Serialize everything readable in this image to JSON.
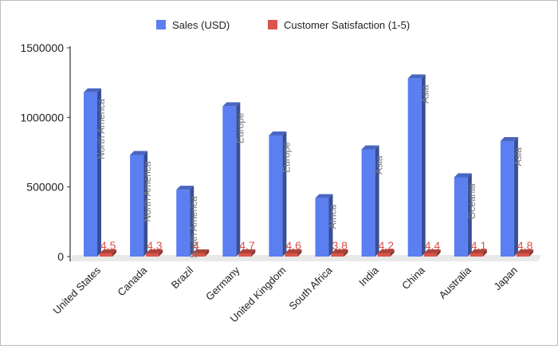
{
  "chart_data": {
    "type": "bar",
    "title": "",
    "xlabel": "",
    "ylabel": "",
    "ylim": [
      0,
      1500000
    ],
    "yticks": [
      0,
      500000,
      1000000,
      1500000
    ],
    "y_tick_labels": [
      "0",
      "500000",
      "1000000",
      "1500000"
    ],
    "grid": false,
    "three_d": true,
    "legend_position": "top",
    "categories": [
      "United States",
      "Canada",
      "Brazil",
      "Germany",
      "United Kingdom",
      "South Africa",
      "India",
      "China",
      "Australia",
      "Japan"
    ],
    "series": [
      {
        "name": "Sales (USD)",
        "color": "#5b7ff0",
        "values": [
          1180000,
          730000,
          480000,
          1080000,
          870000,
          420000,
          770000,
          1280000,
          570000,
          830000
        ],
        "data_labels": [
          "North America",
          "North America",
          "South America",
          "Europe",
          "Europe",
          "Africa",
          "Asia",
          "Asia",
          "Oceania",
          "Asia"
        ]
      },
      {
        "name": "Customer Satisfaction (1-5)",
        "color": "#d9544a",
        "values": [
          4.5,
          4.3,
          4,
          4.7,
          4.6,
          3.8,
          4.2,
          4.4,
          4.1,
          4.8
        ],
        "data_labels": [
          "4.5",
          "4.3",
          "4",
          "4.7",
          "4.6",
          "3.8",
          "4.2",
          "4.4",
          "4.1",
          "4.8"
        ]
      }
    ]
  }
}
